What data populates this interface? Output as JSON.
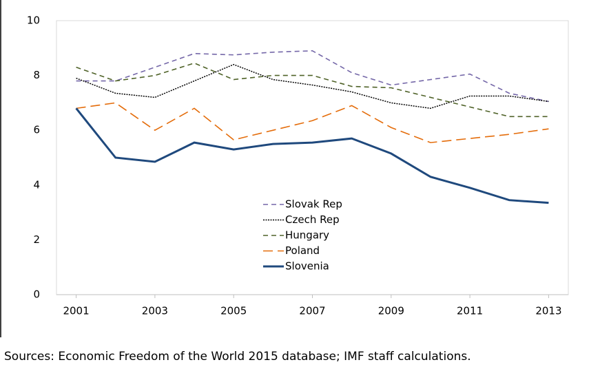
{
  "chart_data": {
    "type": "line",
    "source": "Sources: Economic Freedom of the World 2015 database; IMF staff calculations.",
    "x": [
      2001,
      2002,
      2003,
      2004,
      2005,
      2006,
      2007,
      2008,
      2009,
      2010,
      2011,
      2012,
      2013
    ],
    "xlim": [
      2000.5,
      2013.5
    ],
    "xticks": [
      2001,
      2003,
      2005,
      2007,
      2009,
      2011,
      2013
    ],
    "ylim": [
      0,
      10
    ],
    "yticks": [
      0,
      2,
      4,
      6,
      8,
      10
    ],
    "series": [
      {
        "name": "Slovak Rep",
        "color": "#7467a8",
        "style": "dashed",
        "values": [
          7.8,
          7.8,
          8.3,
          8.8,
          8.75,
          8.85,
          8.9,
          8.1,
          7.65,
          7.85,
          8.05,
          7.35,
          7.05
        ]
      },
      {
        "name": "Czech Rep",
        "color": "#000000",
        "style": "dotted",
        "values": [
          7.9,
          7.35,
          7.2,
          7.8,
          8.4,
          7.85,
          7.65,
          7.4,
          7.0,
          6.8,
          7.25,
          7.25,
          7.05
        ]
      },
      {
        "name": "Hungary",
        "color": "#4f6228",
        "style": "dashed",
        "values": [
          8.3,
          7.8,
          8.0,
          8.45,
          7.85,
          8.0,
          8.0,
          7.6,
          7.55,
          7.2,
          6.85,
          6.5,
          6.5
        ]
      },
      {
        "name": "Poland",
        "color": "#e46c0a",
        "style": "long-dashed",
        "values": [
          6.8,
          7.0,
          6.0,
          6.8,
          5.65,
          6.0,
          6.35,
          6.9,
          6.1,
          5.55,
          5.7,
          5.85,
          6.05
        ]
      },
      {
        "name": "Slovenia",
        "color": "#1f497d",
        "style": "solid",
        "values": [
          6.8,
          5.0,
          4.85,
          5.55,
          5.3,
          5.5,
          5.55,
          5.7,
          5.15,
          4.3,
          3.9,
          3.45,
          3.35
        ]
      }
    ]
  }
}
